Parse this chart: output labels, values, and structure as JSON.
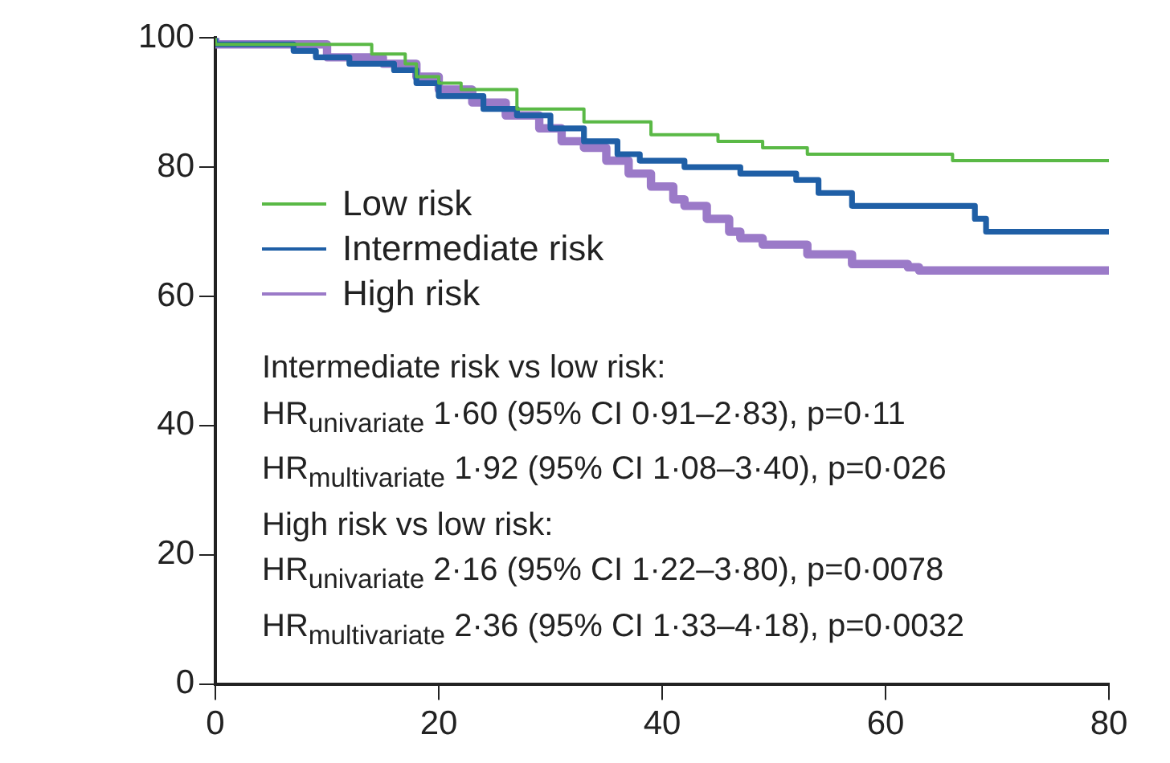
{
  "chart_data": {
    "type": "step",
    "xlim": [
      0,
      80
    ],
    "xticks": [
      0,
      20,
      40,
      60,
      80
    ],
    "ylim": [
      0,
      100
    ],
    "yticks": [
      0,
      20,
      40,
      60,
      80,
      100
    ],
    "grid": false,
    "legend": "left",
    "marker": "none",
    "line_style": "solid",
    "series": [
      {
        "name": "Low risk",
        "color": "#5ab946",
        "x": [
          0,
          14,
          17,
          18,
          20,
          22,
          27,
          33,
          39,
          45,
          49,
          53,
          66,
          68,
          80
        ],
        "values": [
          100,
          99,
          97.5,
          96,
          94,
          93,
          92,
          89,
          87,
          85,
          84,
          83,
          82,
          81,
          81
        ]
      },
      {
        "name": "Intermediate risk",
        "color": "#1f5fa6",
        "x": [
          0,
          7,
          9,
          12,
          16,
          18,
          20,
          24,
          27,
          30,
          33,
          36,
          38,
          42,
          47,
          52,
          54,
          57,
          68,
          69,
          75,
          80
        ],
        "values": [
          100,
          99,
          98,
          97,
          96,
          95,
          93,
          91,
          89,
          88,
          86,
          84,
          82,
          81,
          80,
          79,
          78,
          76,
          74,
          72,
          70,
          70
        ]
      },
      {
        "name": "High risk",
        "color": "#9b7ac8",
        "x": [
          0,
          10,
          15,
          18,
          20,
          23,
          26,
          29,
          31,
          33,
          35,
          37,
          39,
          41,
          42,
          44,
          46,
          47,
          49,
          53,
          57,
          62,
          63,
          72,
          80
        ],
        "values": [
          100,
          99,
          97,
          96,
          94,
          92,
          90,
          88,
          86,
          84,
          83,
          81,
          79,
          77,
          75,
          74,
          72,
          70,
          69,
          68,
          66.5,
          65,
          64.5,
          64,
          64
        ]
      }
    ],
    "annotations": [
      "Intermediate risk vs low risk:",
      "HR$_{univariate}$ 1·60 (95% CI 0·91–2·83), p=0·11",
      "HR$_{multivariate}$ 1·92 (95% CI 1·08–3·40), p=0·026",
      "High risk vs low risk:",
      "HR$_{univariate}$ 2·16 (95% CI 1·22–3·80), p=0·0078",
      "HR$_{multivariate}$ 2·36 (95% CI 1·33–4·18), p=0·0032"
    ]
  }
}
